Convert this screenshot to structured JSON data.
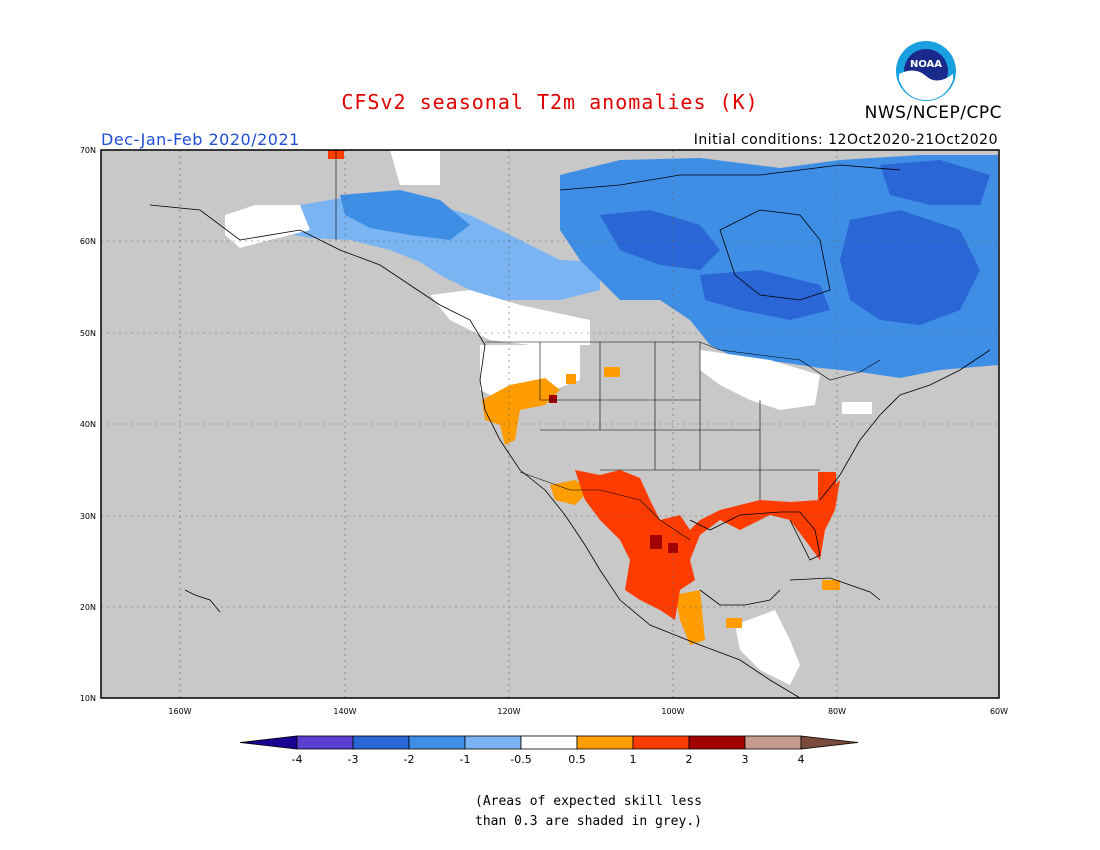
{
  "title": "CFSv2 seasonal T2m anomalies (K)",
  "org": "NWS/NCEP/CPC",
  "logo_text": "NOAA",
  "season": "Dec-Jan-Feb 2020/2021",
  "initial_conditions": "Initial conditions: 12Oct2020-21Oct2020",
  "lat_labels": [
    "70N",
    "60N",
    "50N",
    "40N",
    "30N",
    "20N",
    "10N"
  ],
  "lon_labels": [
    "160W",
    "140W",
    "120W",
    "100W",
    "80W",
    "60W"
  ],
  "colorbar": {
    "labels": [
      "-4",
      "-3",
      "-2",
      "-1",
      "-0.5",
      "0.5",
      "1",
      "2",
      "3",
      "4"
    ],
    "colors": [
      "#1a0090",
      "#5a3fd1",
      "#2a66d6",
      "#3f8ee6",
      "#7ab4f2",
      "#ffffff",
      "#ff9c00",
      "#ff3c00",
      "#a00000",
      "#c89c8c",
      "#7a4a3a"
    ]
  },
  "note_line1": "(Areas of expected skill less",
  "note_line2": "than 0.3 are shaded in grey.)",
  "colors": {
    "no_skill_grey": "#c8c8c8",
    "title_red": "#e00000",
    "season_blue": "#1f4fd8"
  }
}
